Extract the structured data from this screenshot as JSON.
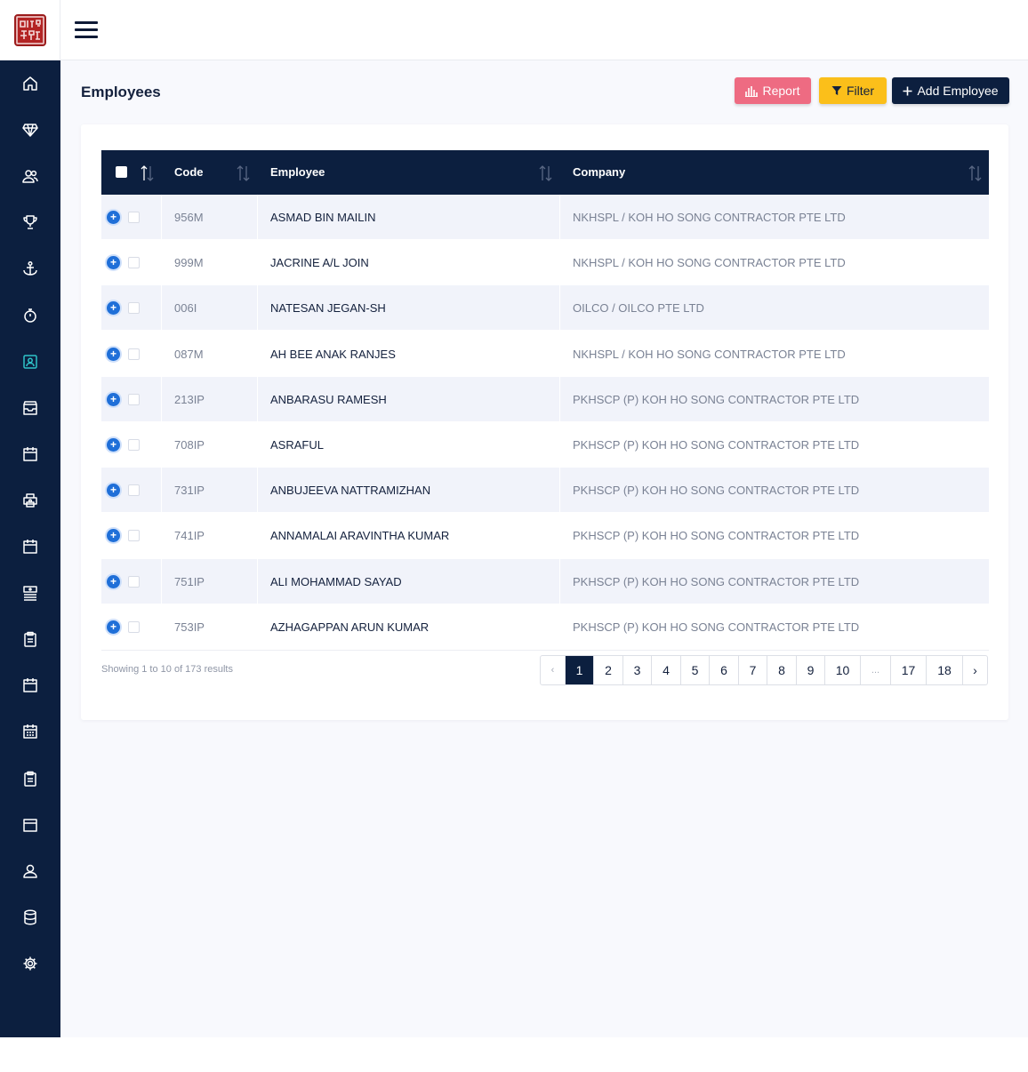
{
  "header": {
    "menu_icon": "hamburger-icon",
    "logo_icon": "seal-logo"
  },
  "sidebar": {
    "items": [
      {
        "name": "home",
        "icon": "home-icon",
        "active": false
      },
      {
        "name": "diamond",
        "icon": "diamond-icon",
        "active": false
      },
      {
        "name": "users",
        "icon": "users-icon",
        "active": false
      },
      {
        "name": "trophy",
        "icon": "trophy-icon",
        "active": false
      },
      {
        "name": "anchor",
        "icon": "anchor-icon",
        "active": false
      },
      {
        "name": "timer",
        "icon": "stopwatch-icon",
        "active": false
      },
      {
        "name": "employees",
        "icon": "contact-card-icon",
        "active": true
      },
      {
        "name": "inbox",
        "icon": "inbox-icon",
        "active": false
      },
      {
        "name": "calendar",
        "icon": "calendar-icon",
        "active": false
      },
      {
        "name": "printer",
        "icon": "printer-icon",
        "active": false
      },
      {
        "name": "calendar-2",
        "icon": "calendar-icon",
        "active": false
      },
      {
        "name": "list",
        "icon": "list-icon",
        "active": false
      },
      {
        "name": "clipboard",
        "icon": "clipboard-icon",
        "active": false
      },
      {
        "name": "calendar-3",
        "icon": "calendar-icon",
        "active": false
      },
      {
        "name": "calendar-grid",
        "icon": "calendar-grid-icon",
        "active": false
      },
      {
        "name": "clipboard-2",
        "icon": "clipboard-icon",
        "active": false
      },
      {
        "name": "window",
        "icon": "window-icon",
        "active": false
      },
      {
        "name": "profile",
        "icon": "user-icon",
        "active": false
      },
      {
        "name": "database",
        "icon": "database-icon",
        "active": false
      },
      {
        "name": "settings",
        "icon": "gear-icon",
        "active": false
      }
    ]
  },
  "page": {
    "title": "Employees"
  },
  "toolbar": {
    "report_label": "Report",
    "filter_label": "Filter",
    "add_label": "Add Employee"
  },
  "table": {
    "columns": [
      "Code",
      "Employee",
      "Company"
    ],
    "rows": [
      {
        "code": "956M",
        "employee": "ASMAD BIN MAILIN",
        "company": "NKHSPL / KOH HO SONG CONTRACTOR PTE LTD"
      },
      {
        "code": "999M",
        "employee": "JACRINE A/L JOIN",
        "company": "NKHSPL / KOH HO SONG CONTRACTOR PTE LTD"
      },
      {
        "code": "006I",
        "employee": "NATESAN JEGAN-SH",
        "company": "OILCO / OILCO PTE LTD"
      },
      {
        "code": "087M",
        "employee": "AH BEE ANAK RANJES",
        "company": "NKHSPL / KOH HO SONG CONTRACTOR PTE LTD"
      },
      {
        "code": "213IP",
        "employee": "ANBARASU RAMESH",
        "company": "PKHSCP (P) KOH HO SONG CONTRACTOR PTE LTD"
      },
      {
        "code": "708IP",
        "employee": "ASRAFUL",
        "company": "PKHSCP (P) KOH HO SONG CONTRACTOR PTE LTD"
      },
      {
        "code": "731IP",
        "employee": "ANBUJEEVA NATTRAMIZHAN",
        "company": "PKHSCP (P) KOH HO SONG CONTRACTOR PTE LTD"
      },
      {
        "code": "741IP",
        "employee": "ANNAMALAI ARAVINTHA KUMAR",
        "company": "PKHSCP (P) KOH HO SONG CONTRACTOR PTE LTD"
      },
      {
        "code": "751IP",
        "employee": "ALI MOHAMMAD SAYAD",
        "company": "PKHSCP (P) KOH HO SONG CONTRACTOR PTE LTD"
      },
      {
        "code": "753IP",
        "employee": "AZHAGAPPAN ARUN KUMAR",
        "company": "PKHSCP (P) KOH HO SONG CONTRACTOR PTE LTD"
      }
    ]
  },
  "footer": {
    "showing": "Showing 1 to 10 of 173 results",
    "pages": [
      "‹",
      "1",
      "2",
      "3",
      "4",
      "5",
      "6",
      "7",
      "8",
      "9",
      "10",
      "...",
      "17",
      "18",
      "›"
    ],
    "current_page": "1"
  },
  "colors": {
    "navy": "#0c1f3f",
    "report": "#ee6b82",
    "filter": "#fbbf1a",
    "active_icon": "#2ec4c9",
    "expand": "#1f6fd8"
  }
}
